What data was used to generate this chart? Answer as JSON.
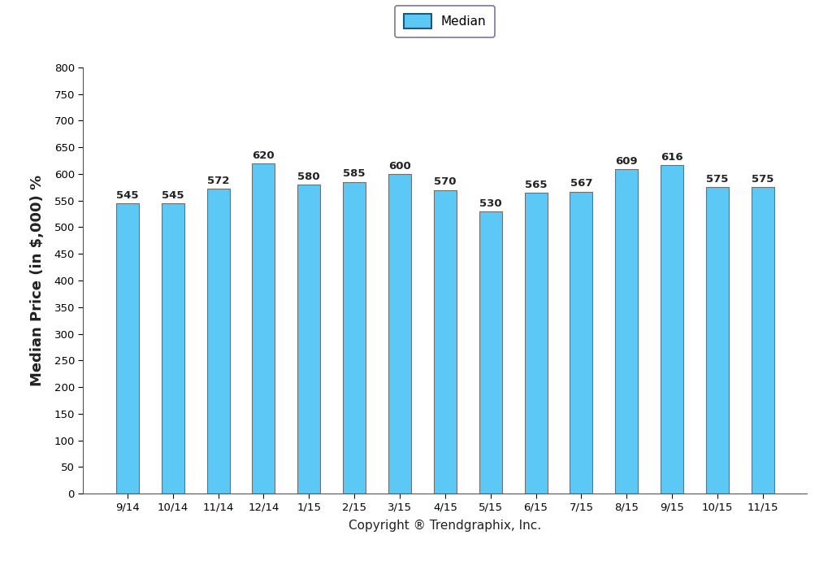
{
  "categories": [
    "9/14",
    "10/14",
    "11/14",
    "12/14",
    "1/15",
    "2/15",
    "3/15",
    "4/15",
    "5/15",
    "6/15",
    "7/15",
    "8/15",
    "9/15",
    "10/15",
    "11/15"
  ],
  "values": [
    545,
    545,
    572,
    620,
    580,
    585,
    600,
    570,
    530,
    565,
    567,
    609,
    616,
    575,
    575
  ],
  "bar_color": "#5BC8F5",
  "bar_edge_color": "#6E6E6E",
  "ylabel": "Median Price (in $,000) %",
  "xlabel": "Copyright ® Trendgraphix, Inc.",
  "ylim": [
    0,
    800
  ],
  "yticks": [
    0,
    50,
    100,
    150,
    200,
    250,
    300,
    350,
    400,
    450,
    500,
    550,
    600,
    650,
    700,
    750,
    800
  ],
  "legend_label": "Median",
  "legend_box_color": "#5BC8F5",
  "legend_box_edge_color": "#1C5A7A",
  "background_color": "#FFFFFF",
  "bar_label_fontsize": 9.5,
  "ylabel_fontsize": 13,
  "xlabel_fontsize": 11,
  "tick_fontsize": 9.5,
  "legend_fontsize": 11,
  "bar_width": 0.5
}
